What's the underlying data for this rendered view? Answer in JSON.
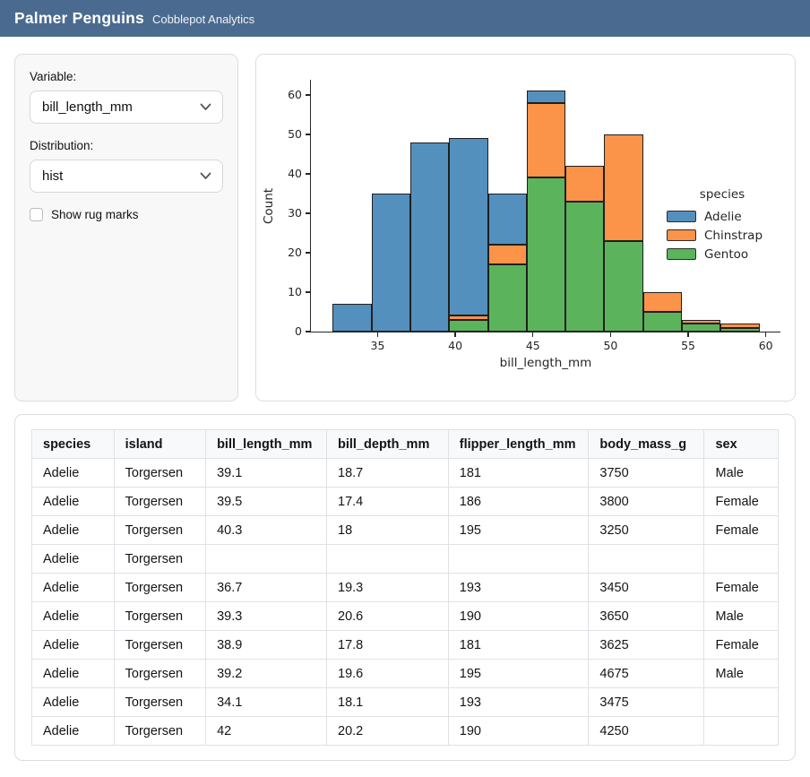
{
  "header": {
    "title": "Palmer Penguins",
    "subtitle": "Cobblepot Analytics"
  },
  "sidebar": {
    "variable_label": "Variable:",
    "variable_value": "bill_length_mm",
    "distribution_label": "Distribution:",
    "distribution_value": "hist",
    "rug_label": "Show rug marks",
    "rug_checked": false
  },
  "chart_data": {
    "type": "bar",
    "subtype": "stacked_histogram",
    "title": "",
    "xlabel": "bill_length_mm",
    "ylabel": "Count",
    "legend_title": "species",
    "legend_position": "center right",
    "grid": false,
    "bin_edges": [
      32.1,
      34.6,
      37.1,
      39.6,
      42.1,
      44.6,
      47.1,
      49.6,
      52.1,
      54.6,
      57.1,
      59.6
    ],
    "x_ticks": [
      35,
      40,
      45,
      50,
      55,
      60
    ],
    "y_ticks": [
      0,
      10,
      20,
      30,
      40,
      50,
      60
    ],
    "xlim": [
      30.7,
      61.0
    ],
    "ylim": [
      0,
      64.05
    ],
    "bar_edge_color": "#1f1f1f",
    "stack_order_bottom_to_top": [
      "Gentoo",
      "Chinstrap",
      "Adelie"
    ],
    "series": [
      {
        "name": "Adelie",
        "color": "#5490be",
        "values": [
          7,
          35,
          48,
          45,
          13,
          3,
          0,
          0,
          0,
          0,
          0
        ]
      },
      {
        "name": "Chinstrap",
        "color": "#fb9349",
        "values": [
          0,
          0,
          0,
          1,
          5,
          19,
          9,
          27,
          5,
          1,
          1
        ]
      },
      {
        "name": "Gentoo",
        "color": "#5bb45c",
        "values": [
          0,
          0,
          0,
          3,
          17,
          39,
          33,
          23,
          5,
          2,
          1
        ]
      }
    ]
  },
  "table": {
    "columns": [
      "species",
      "island",
      "bill_length_mm",
      "bill_depth_mm",
      "flipper_length_mm",
      "body_mass_g",
      "sex"
    ],
    "rows": [
      [
        "Adelie",
        "Torgersen",
        "39.1",
        "18.7",
        "181",
        "3750",
        "Male"
      ],
      [
        "Adelie",
        "Torgersen",
        "39.5",
        "17.4",
        "186",
        "3800",
        "Female"
      ],
      [
        "Adelie",
        "Torgersen",
        "40.3",
        "18",
        "195",
        "3250",
        "Female"
      ],
      [
        "Adelie",
        "Torgersen",
        "",
        "",
        "",
        "",
        ""
      ],
      [
        "Adelie",
        "Torgersen",
        "36.7",
        "19.3",
        "193",
        "3450",
        "Female"
      ],
      [
        "Adelie",
        "Torgersen",
        "39.3",
        "20.6",
        "190",
        "3650",
        "Male"
      ],
      [
        "Adelie",
        "Torgersen",
        "38.9",
        "17.8",
        "181",
        "3625",
        "Female"
      ],
      [
        "Adelie",
        "Torgersen",
        "39.2",
        "19.6",
        "195",
        "4675",
        "Male"
      ],
      [
        "Adelie",
        "Torgersen",
        "34.1",
        "18.1",
        "193",
        "3475",
        ""
      ],
      [
        "Adelie",
        "Torgersen",
        "42",
        "20.2",
        "190",
        "4250",
        ""
      ]
    ]
  }
}
